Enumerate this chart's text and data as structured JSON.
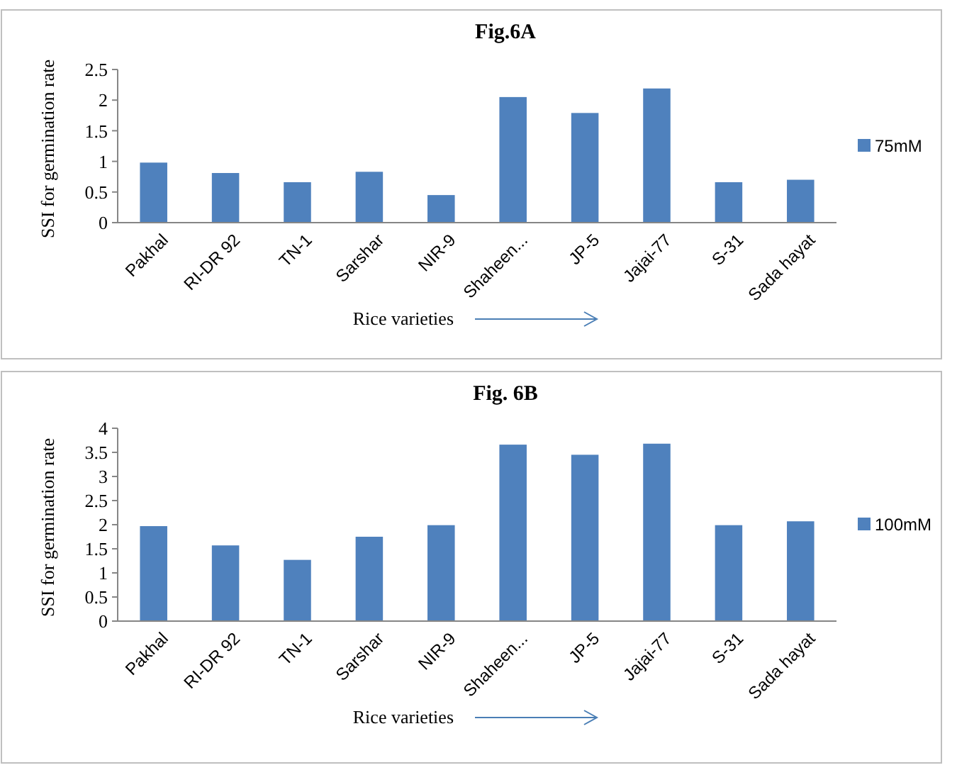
{
  "chart_data": [
    {
      "type": "bar",
      "title": "Fig.6A",
      "xlabel": "Rice varieties",
      "ylabel": "SSI for germination rate",
      "categories": [
        "Pakhal",
        "RI-DR 92",
        "TN-1",
        "Sarshar",
        "NIR-9",
        "Shaheen...",
        "JP-5",
        "Jajai-77",
        "S-31",
        "Sada hayat"
      ],
      "series": [
        {
          "name": "75mM",
          "color": "#4f81bd",
          "values": [
            0.98,
            0.81,
            0.66,
            0.83,
            0.45,
            2.05,
            1.79,
            2.19,
            0.66,
            0.7
          ]
        }
      ],
      "ylim": [
        0,
        2.5
      ],
      "yticks": [
        0,
        0.5,
        1,
        1.5,
        2,
        2.5
      ],
      "grid": false,
      "legend": "right"
    },
    {
      "type": "bar",
      "title": "Fig. 6B",
      "xlabel": "Rice varieties",
      "ylabel": "SSI for germination rate",
      "categories": [
        "Pakhal",
        "RI-DR 92",
        "TN-1",
        "Sarshar",
        "NIR-9",
        "Shaheen...",
        "JP-5",
        "Jajai-77",
        "S-31",
        "Sada hayat"
      ],
      "series": [
        {
          "name": "100mM",
          "color": "#4f81bd",
          "values": [
            1.97,
            1.57,
            1.27,
            1.75,
            1.99,
            3.66,
            3.45,
            3.68,
            1.99,
            2.07
          ]
        }
      ],
      "ylim": [
        0,
        4
      ],
      "yticks": [
        0,
        0.5,
        1,
        1.5,
        2,
        2.5,
        3,
        3.5,
        4
      ],
      "grid": false,
      "legend": "right"
    }
  ]
}
